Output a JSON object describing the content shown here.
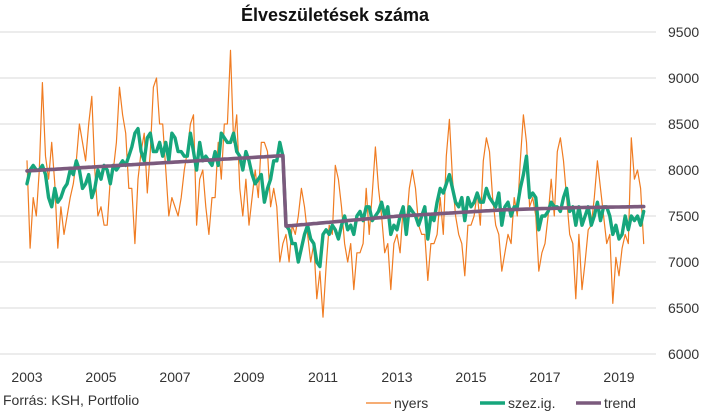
{
  "chart_data": {
    "type": "line",
    "title": "Élveszületések száma",
    "source": "Forrás: KSH, Portfolio",
    "xlabel": "",
    "ylabel": "",
    "xlim": [
      2003,
      2020
    ],
    "ylim": [
      6000,
      9500
    ],
    "x_ticks": [
      "2003",
      "2005",
      "2007",
      "2009",
      "2011",
      "2013",
      "2015",
      "2017",
      "2019"
    ],
    "y_ticks": [
      "6000",
      "6500",
      "7000",
      "7500",
      "8000",
      "8500",
      "9000",
      "9500"
    ],
    "y_axis_position": "right",
    "grid": "horizontal",
    "legend_position": "bottom-right",
    "series": [
      {
        "name": "nyers",
        "color": "#f07c22",
        "values": [
          8100,
          7150,
          7700,
          7500,
          8000,
          8950,
          8150,
          7900,
          8300,
          7850,
          7150,
          7600,
          7300,
          7500,
          7700,
          7850,
          8100,
          8500,
          8300,
          8100,
          8500,
          8800,
          8000,
          7500,
          7600,
          7400,
          7400,
          7900,
          8000,
          8300,
          8900,
          8600,
          8400,
          7800,
          7800,
          7200,
          7900,
          8200,
          8400,
          7750,
          8200,
          8900,
          9000,
          8500,
          8500,
          8000,
          7500,
          7700,
          7600,
          7500,
          7700,
          8000,
          8200,
          8500,
          8600,
          7400,
          7900,
          8000,
          7600,
          7300,
          7700,
          7700,
          8300,
          7900,
          8500,
          8500,
          9300,
          8300,
          8600,
          7800,
          7500,
          7900,
          7400,
          7700,
          8000,
          7700,
          8300,
          8300,
          8200,
          7600,
          7800,
          7600,
          7000,
          7200,
          7300,
          7000,
          7400,
          7300,
          7500,
          7800,
          7600,
          7300,
          7000,
          7200,
          6600,
          6900,
          6400,
          6950,
          7400,
          7300,
          8050,
          7900,
          7600,
          7200,
          7000,
          7200,
          6700,
          7100,
          7100,
          7200,
          7800,
          7300,
          7750,
          8250,
          7800,
          7500,
          7100,
          7200,
          6700,
          7200,
          7300,
          7100,
          7600,
          7400,
          7800,
          8000,
          7800,
          7400,
          7300,
          7300,
          6800,
          7200,
          7200,
          7300,
          7700,
          7300,
          8150,
          8550,
          7900,
          7500,
          7300,
          7200,
          6850,
          7400,
          7400,
          7500,
          7750,
          7400,
          8100,
          8350,
          8200,
          7700,
          7400,
          7300,
          6900,
          7100,
          7300,
          7200,
          7700,
          7500,
          8100,
          8600,
          8300,
          7600,
          7700,
          7500,
          6900,
          7100,
          7200,
          7500,
          7900,
          7500,
          8200,
          8350,
          8100,
          7700,
          7300,
          7200,
          6600,
          7300,
          6700,
          7000,
          7350,
          7400,
          7700,
          8100,
          7800,
          7500,
          7200,
          7300,
          6550,
          7050,
          6850,
          7150,
          7300,
          7200,
          8350,
          7900,
          8000,
          7800,
          7200
        ]
      },
      {
        "name": "szez.ig.",
        "color": "#16a67c",
        "values": [
          7850,
          8000,
          8050,
          8000,
          8000,
          8050,
          7950,
          7700,
          7600,
          7800,
          7650,
          7700,
          7800,
          7850,
          8000,
          7950,
          8100,
          8000,
          7800,
          7850,
          7950,
          7700,
          7800,
          8000,
          7900,
          8050,
          8000,
          7850,
          8050,
          8000,
          8050,
          8100,
          8050,
          8150,
          8250,
          8400,
          8450,
          8200,
          8100,
          8350,
          8400,
          8200,
          8200,
          8300,
          8150,
          8300,
          8100,
          8400,
          8350,
          8200,
          8200,
          8150,
          8150,
          8400,
          8200,
          8000,
          8300,
          8100,
          8150,
          8100,
          8050,
          8200,
          8050,
          8400,
          8350,
          8300,
          8300,
          8400,
          8200,
          8150,
          8000,
          8200,
          8100,
          7950,
          7850,
          7900,
          7950,
          7650,
          7800,
          7900,
          8100,
          8100,
          8300,
          8150,
          7400,
          7350,
          7200,
          7200,
          7000,
          7150,
          7300,
          7400,
          7250,
          7200,
          7000,
          6950,
          7300,
          7350,
          7300,
          7400,
          7350,
          7250,
          7400,
          7500,
          7350,
          7400,
          7300,
          7500,
          7550,
          7450,
          7600,
          7600,
          7450,
          7500,
          7550,
          7650,
          7500,
          7600,
          7300,
          7400,
          7350,
          7500,
          7600,
          7300,
          7600,
          7550,
          7500,
          7400,
          7500,
          7600,
          7250,
          7500,
          7450,
          7650,
          7800,
          7750,
          7850,
          7950,
          7800,
          7650,
          7600,
          7700,
          7450,
          7700,
          7600,
          7650,
          7750,
          7650,
          7650,
          7800,
          7700,
          7650,
          7600,
          7750,
          7400,
          7600,
          7650,
          7500,
          7600,
          7600,
          7800,
          7950,
          8150,
          7700,
          7750,
          7700,
          7350,
          7500,
          7500,
          7550,
          7650,
          7600,
          7600,
          7550,
          7700,
          7800,
          7550,
          7600,
          7400,
          7600,
          7400,
          7500,
          7600,
          7400,
          7500,
          7650,
          7450,
          7600,
          7600,
          7500,
          7300,
          7400,
          7250,
          7300,
          7500,
          7350,
          7500,
          7450,
          7500,
          7400,
          7550
        ]
      },
      {
        "name": "trend",
        "color": "#7b5a7d",
        "values": [
          7990,
          7992,
          7994,
          7996,
          7998,
          8000,
          8002,
          8004,
          8006,
          8008,
          8010,
          8012,
          8014,
          8016,
          8018,
          8020,
          8022,
          8024,
          8026,
          8028,
          8030,
          8032,
          8034,
          8036,
          8038,
          8040,
          8042,
          8044,
          8046,
          8048,
          8050,
          8052,
          8054,
          8056,
          8058,
          8060,
          8062,
          8064,
          8066,
          8068,
          8070,
          8072,
          8074,
          8076,
          8078,
          8080,
          8082,
          8084,
          8086,
          8088,
          8090,
          8092,
          8094,
          8096,
          8098,
          8100,
          8102,
          8104,
          8106,
          8108,
          8110,
          8112,
          8114,
          8116,
          8118,
          8120,
          8122,
          8124,
          8126,
          8128,
          8130,
          8132,
          8134,
          8136,
          8138,
          8140,
          8142,
          8144,
          8146,
          8148,
          8150,
          8152,
          8154,
          8156,
          7390,
          7393,
          7396,
          7399,
          7402,
          7405,
          7408,
          7411,
          7414,
          7417,
          7420,
          7423,
          7426,
          7429,
          7432,
          7435,
          7438,
          7441,
          7444,
          7447,
          7450,
          7453,
          7456,
          7459,
          7462,
          7465,
          7468,
          7471,
          7474,
          7477,
          7480,
          7483,
          7486,
          7489,
          7492,
          7495,
          7498,
          7500,
          7502,
          7504,
          7506,
          7508,
          7510,
          7512,
          7514,
          7516,
          7518,
          7520,
          7522,
          7524,
          7526,
          7528,
          7530,
          7532,
          7534,
          7536,
          7538,
          7540,
          7542,
          7544,
          7546,
          7548,
          7550,
          7552,
          7554,
          7556,
          7558,
          7560,
          7562,
          7564,
          7566,
          7568,
          7569,
          7570,
          7571,
          7572,
          7573,
          7574,
          7575,
          7576,
          7577,
          7578,
          7579,
          7580,
          7581,
          7582,
          7583,
          7584,
          7585,
          7586,
          7587,
          7588,
          7589,
          7590,
          7591,
          7592,
          7592,
          7593,
          7593,
          7594,
          7594,
          7595,
          7595,
          7596,
          7596,
          7597,
          7597,
          7598,
          7598,
          7599,
          7599,
          7600,
          7600,
          7601,
          7601,
          7602,
          7602
        ]
      }
    ]
  }
}
